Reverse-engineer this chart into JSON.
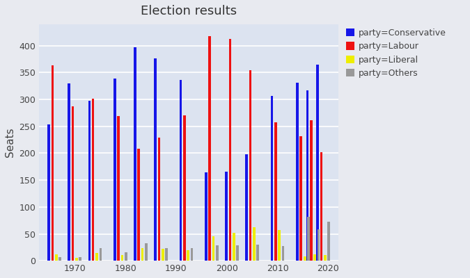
{
  "title": "Election results",
  "ylabel": "Seats",
  "background_color": "#e8eaf0",
  "plot_bg_color": "#dce3f0",
  "years": [
    1966,
    1970,
    1974,
    1979,
    1983,
    1987,
    1992,
    1997,
    2001,
    2005,
    2010,
    2015,
    2017,
    2019
  ],
  "parties": [
    "Conservative",
    "Labour",
    "Liberal",
    "Others"
  ],
  "colors": [
    "#1616e8",
    "#ee1111",
    "#eeee00",
    "#999999"
  ],
  "data": {
    "Conservative": [
      253,
      330,
      297,
      339,
      397,
      376,
      336,
      165,
      166,
      198,
      306,
      331,
      317,
      365
    ],
    "Labour": [
      364,
      287,
      301,
      269,
      209,
      229,
      271,
      418,
      413,
      355,
      258,
      232,
      262,
      202
    ],
    "Liberal": [
      12,
      6,
      14,
      11,
      23,
      22,
      20,
      46,
      52,
      62,
      57,
      8,
      12,
      11
    ],
    "Others": [
      7,
      7,
      23,
      16,
      33,
      23,
      24,
      29,
      29,
      30,
      28,
      82,
      59,
      72
    ]
  },
  "legend_labels": [
    "party=Conservative",
    "party=Labour",
    "party=Liberal",
    "party=Others"
  ],
  "xlim": [
    1963,
    2022
  ],
  "ylim": [
    0,
    440
  ],
  "xticks": [
    1970,
    1980,
    1990,
    2000,
    2010,
    2020
  ],
  "bar_width": 0.5,
  "party_offsets": [
    -1.1,
    -0.37,
    0.37,
    1.1
  ]
}
